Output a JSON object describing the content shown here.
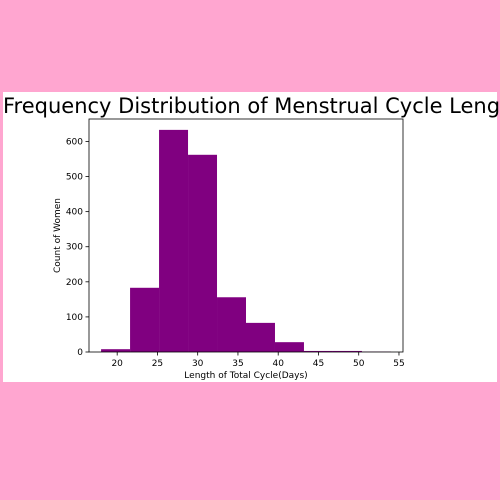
{
  "chart_data": {
    "type": "bar",
    "title": "Frequency Distribution of Menstrual Cycle Length",
    "xlabel": "Length of Total Cycle(Days)",
    "ylabel": "Count of Women",
    "bar_color": "#800080",
    "xlim": [
      16.5,
      55.5
    ],
    "ylim": [
      0,
      664
    ],
    "xticks": [
      20,
      25,
      30,
      35,
      40,
      45,
      50,
      55
    ],
    "yticks": [
      0,
      100,
      200,
      300,
      400,
      500,
      600
    ],
    "bins": [
      {
        "x0": 18,
        "x1": 21.6,
        "count": 8
      },
      {
        "x0": 21.6,
        "x1": 25.2,
        "count": 183
      },
      {
        "x0": 25.2,
        "x1": 28.8,
        "count": 633
      },
      {
        "x0": 28.8,
        "x1": 32.4,
        "count": 562
      },
      {
        "x0": 32.4,
        "x1": 36.0,
        "count": 156
      },
      {
        "x0": 36.0,
        "x1": 39.6,
        "count": 83
      },
      {
        "x0": 39.6,
        "x1": 43.2,
        "count": 28
      },
      {
        "x0": 43.2,
        "x1": 46.8,
        "count": 3
      },
      {
        "x0": 46.8,
        "x1": 50.4,
        "count": 3
      },
      {
        "x0": 50.4,
        "x1": 54.0,
        "count": 1
      }
    ],
    "grid": false,
    "legend": "none"
  }
}
